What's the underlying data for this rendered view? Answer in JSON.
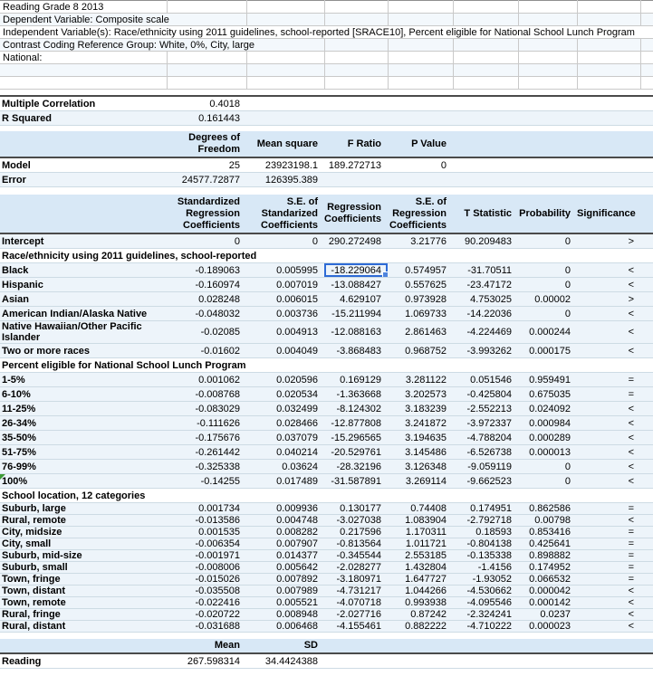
{
  "info": {
    "rows": [
      {
        "text": "Reading Grade 8 2013",
        "span": 1
      },
      {
        "text": "Dependent Variable: Composite scale",
        "span": 2
      },
      {
        "text": "Independent Variable(s): Race/ethnicity using 2011 guidelines, school-reported [SRACE10],  Percent eligible for National School Lunch Program",
        "span": 9
      },
      {
        "text": "Contrast Coding Reference Group: White,  0%,  City, large",
        "span": 3
      },
      {
        "text": "National:",
        "span": 1
      },
      {
        "text": "",
        "span": 1
      },
      {
        "text": "",
        "span": 1
      }
    ]
  },
  "fit": {
    "multiple_correlation_label": "Multiple Correlation",
    "multiple_correlation_value": "0.4018",
    "r_squared_label": "R Squared",
    "r_squared_value": "0.161443"
  },
  "anova": {
    "headers": [
      "Degrees of Freedom",
      "Mean square",
      "F Ratio",
      "P Value"
    ],
    "rows": [
      {
        "label": "Model",
        "values": [
          "25",
          "23923198.1",
          "189.272713",
          "0"
        ]
      },
      {
        "label": "Error",
        "values": [
          "24577.72877",
          "126395.389",
          "",
          ""
        ]
      }
    ]
  },
  "regression": {
    "headers": [
      "Standardized Regression Coefficients",
      "S.E. of Standarized Coefficients",
      "Regression Coefficients",
      "S.E. of Regression Coefficients",
      "T Statistic",
      "Probability",
      "Significance"
    ],
    "rows": [
      {
        "label": "Intercept",
        "values": [
          "0",
          "0",
          "290.272498",
          "3.21776",
          "90.209483",
          "0"
        ],
        "sig": ">"
      },
      {
        "section": "Race/ethnicity using 2011 guidelines, school-reported"
      },
      {
        "label": "Black",
        "values": [
          "-0.189063",
          "0.005995",
          "-18.229064",
          "0.574957",
          "-31.70511",
          "0"
        ],
        "sig": "<",
        "selected_col": 2
      },
      {
        "label": "Hispanic",
        "values": [
          "-0.160974",
          "0.007019",
          "-13.088427",
          "0.557625",
          "-23.47172",
          "0"
        ],
        "sig": "<"
      },
      {
        "label": "Asian",
        "values": [
          "0.028248",
          "0.006015",
          "4.629107",
          "0.973928",
          "4.753025",
          "0.00002"
        ],
        "sig": ">"
      },
      {
        "label": "American Indian/Alaska Native",
        "values": [
          "-0.048032",
          "0.003736",
          "-15.211994",
          "1.069733",
          "-14.22036",
          "0"
        ],
        "sig": "<"
      },
      {
        "label": "Native Hawaiian/Other Pacific Islander",
        "values": [
          "-0.02085",
          "0.004913",
          "-12.088163",
          "2.861463",
          "-4.224469",
          "0.000244"
        ],
        "sig": "<"
      },
      {
        "label": "Two or more races",
        "values": [
          "-0.01602",
          "0.004049",
          "-3.868483",
          "0.968752",
          "-3.993262",
          "0.000175"
        ],
        "sig": "<"
      },
      {
        "section": "Percent eligible for National School Lunch Program"
      },
      {
        "label": "1-5%",
        "values": [
          "0.001062",
          "0.020596",
          "0.169129",
          "3.281122",
          "0.051546",
          "0.959491"
        ],
        "sig": "="
      },
      {
        "label": "6-10%",
        "values": [
          "-0.008768",
          "0.020534",
          "-1.363668",
          "3.202573",
          "-0.425804",
          "0.675035"
        ],
        "sig": "="
      },
      {
        "label": "11-25%",
        "values": [
          "-0.083029",
          "0.032499",
          "-8.124302",
          "3.183239",
          "-2.552213",
          "0.024092"
        ],
        "sig": "<"
      },
      {
        "label": "26-34%",
        "values": [
          "-0.111626",
          "0.028466",
          "-12.877808",
          "3.241872",
          "-3.972337",
          "0.000984"
        ],
        "sig": "<"
      },
      {
        "label": "35-50%",
        "values": [
          "-0.175676",
          "0.037079",
          "-15.296565",
          "3.194635",
          "-4.788204",
          "0.000289"
        ],
        "sig": "<"
      },
      {
        "label": "51-75%",
        "values": [
          "-0.261442",
          "0.040214",
          "-20.529761",
          "3.145486",
          "-6.526738",
          "0.000013"
        ],
        "sig": "<"
      },
      {
        "label": "76-99%",
        "values": [
          "-0.325338",
          "0.03624",
          "-28.32196",
          "3.126348",
          "-9.059119",
          "0"
        ],
        "sig": "<"
      },
      {
        "label": "100%",
        "values": [
          "-0.14255",
          "0.017489",
          "-31.587891",
          "3.269114",
          "-9.662523",
          "0"
        ],
        "sig": "<",
        "note": true
      },
      {
        "section": "School location, 12 categories"
      },
      {
        "label": "Suburb, large",
        "school": true,
        "values": [
          "0.001734",
          "0.009936",
          "0.130177",
          "0.74408",
          "0.174951",
          "0.862586"
        ],
        "sig": "="
      },
      {
        "label": "Rural, remote",
        "school": true,
        "values": [
          "-0.013586",
          "0.004748",
          "-3.027038",
          "1.083904",
          "-2.792718",
          "0.00798"
        ],
        "sig": "<"
      },
      {
        "label": "City, midsize",
        "school": true,
        "values": [
          "0.001535",
          "0.008282",
          "0.217596",
          "1.170311",
          "0.18593",
          "0.853416"
        ],
        "sig": "="
      },
      {
        "label": "City, small",
        "school": true,
        "values": [
          "-0.006354",
          "0.007907",
          "-0.813564",
          "1.011721",
          "-0.804138",
          "0.425641"
        ],
        "sig": "="
      },
      {
        "label": "Suburb, mid-size",
        "school": true,
        "values": [
          "-0.001971",
          "0.014377",
          "-0.345544",
          "2.553185",
          "-0.135338",
          "0.898882"
        ],
        "sig": "="
      },
      {
        "label": "Suburb, small",
        "school": true,
        "values": [
          "-0.008006",
          "0.005642",
          "-2.028277",
          "1.432804",
          "-1.4156",
          "0.174952"
        ],
        "sig": "="
      },
      {
        "label": "Town, fringe",
        "school": true,
        "values": [
          "-0.015026",
          "0.007892",
          "-3.180971",
          "1.647727",
          "-1.93052",
          "0.066532"
        ],
        "sig": "="
      },
      {
        "label": "Town, distant",
        "school": true,
        "values": [
          "-0.035508",
          "0.007989",
          "-4.731217",
          "1.044266",
          "-4.530662",
          "0.000042"
        ],
        "sig": "<"
      },
      {
        "label": "Town, remote",
        "school": true,
        "values": [
          "-0.022416",
          "0.005521",
          "-4.070718",
          "0.993938",
          "-4.095546",
          "0.000142"
        ],
        "sig": "<"
      },
      {
        "label": "Rural, fringe",
        "school": true,
        "values": [
          "-0.020722",
          "0.008948",
          "-2.027716",
          "0.87242",
          "-2.324241",
          "0.0237"
        ],
        "sig": "<"
      },
      {
        "label": "Rural, distant",
        "school": true,
        "values": [
          "-0.031688",
          "0.006468",
          "-4.155461",
          "0.882222",
          "-4.710222",
          "0.000023"
        ],
        "sig": "<"
      }
    ]
  },
  "summary": {
    "headers": [
      "Mean",
      "SD"
    ],
    "rows": [
      {
        "label": "Reading",
        "values": [
          "267.598314",
          "34.4424388"
        ]
      }
    ]
  }
}
